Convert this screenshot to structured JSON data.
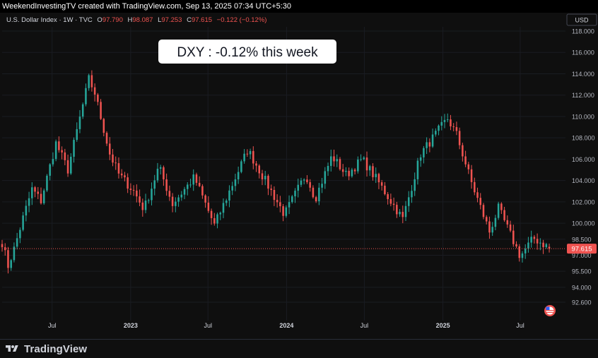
{
  "header": {
    "caption": "WeekendInvestingTV created with TradingView.com, Sep 13, 2025 07:34 UTC+5:30"
  },
  "legend": {
    "symbol": "U.S. Dollar Index · 1W · TVC",
    "o_label": "O",
    "o_value": "97.790",
    "h_label": "H",
    "h_value": "98.087",
    "l_label": "L",
    "l_value": "97.253",
    "c_label": "C",
    "c_value": "97.615",
    "change": "−0.122 (−0.12%)"
  },
  "currency_label": "USD",
  "annotation": "DXY : -0.12% this week",
  "branding": {
    "logo_text": "TradingView",
    "icon": "tradingview-logo-icon"
  },
  "colors": {
    "up": "#26a69a",
    "down": "#ef5350",
    "background": "#0f0f0f",
    "price_line": "#ef5350"
  },
  "flag_icon": "us-flag-icon",
  "chart_data": {
    "type": "candlestick",
    "title": "U.S. Dollar Index · 1W · TVC",
    "ylim": [
      91.0,
      118.5
    ],
    "y_ticks": [
      "118.000",
      "116.000",
      "114.000",
      "112.000",
      "110.000",
      "108.000",
      "106.000",
      "104.000",
      "102.000",
      "100.000",
      "98.500",
      "97.000",
      "95.500",
      "94.000",
      "92.600"
    ],
    "x_range": [
      "2022-03-06",
      "2025-10-15"
    ],
    "x_ticks": [
      {
        "label": "Jul",
        "date": "2022-07-01"
      },
      {
        "label": "2023",
        "date": "2023-01-01"
      },
      {
        "label": "Jul",
        "date": "2023-07-01"
      },
      {
        "label": "2024",
        "date": "2024-01-01"
      },
      {
        "label": "Jul",
        "date": "2024-07-01"
      },
      {
        "label": "2025",
        "date": "2025-01-01"
      },
      {
        "label": "Jul",
        "date": "2025-07-01"
      }
    ],
    "last_price": 97.615,
    "last_price_label": "97.615",
    "anchors": [
      [
        "2022-03-06",
        98.2
      ],
      [
        "2022-03-20",
        96.0
      ],
      [
        "2022-04-03",
        97.6
      ],
      [
        "2022-04-24",
        100.5
      ],
      [
        "2022-05-15",
        103.2
      ],
      [
        "2022-06-05",
        102.1
      ],
      [
        "2022-07-10",
        107.5
      ],
      [
        "2022-08-07",
        105.0
      ],
      [
        "2022-09-25",
        113.5
      ],
      [
        "2022-10-09",
        112.2
      ],
      [
        "2022-11-13",
        106.5
      ],
      [
        "2022-12-04",
        104.6
      ],
      [
        "2023-01-08",
        103.0
      ],
      [
        "2023-02-01",
        101.3
      ],
      [
        "2023-03-08",
        105.3
      ],
      [
        "2023-04-09",
        101.8
      ],
      [
        "2023-05-30",
        104.3
      ],
      [
        "2023-07-16",
        99.8
      ],
      [
        "2023-10-02",
        106.9
      ],
      [
        "2023-12-27",
        100.8
      ],
      [
        "2024-02-15",
        104.6
      ],
      [
        "2024-03-08",
        102.3
      ],
      [
        "2024-04-16",
        106.3
      ],
      [
        "2024-05-20",
        104.5
      ],
      [
        "2024-06-26",
        106.0
      ],
      [
        "2024-07-28",
        104.2
      ],
      [
        "2024-09-29",
        100.4
      ],
      [
        "2024-11-10",
        106.5
      ],
      [
        "2025-01-12",
        109.8
      ],
      [
        "2025-02-02",
        108.3
      ],
      [
        "2025-03-09",
        103.8
      ],
      [
        "2025-04-20",
        99.2
      ],
      [
        "2025-05-11",
        101.4
      ],
      [
        "2025-07-01",
        96.9
      ],
      [
        "2025-08-01",
        98.6
      ],
      [
        "2025-09-12",
        97.615
      ]
    ],
    "last_candle": {
      "open": 97.79,
      "high": 98.087,
      "low": 97.253,
      "close": 97.615
    }
  }
}
